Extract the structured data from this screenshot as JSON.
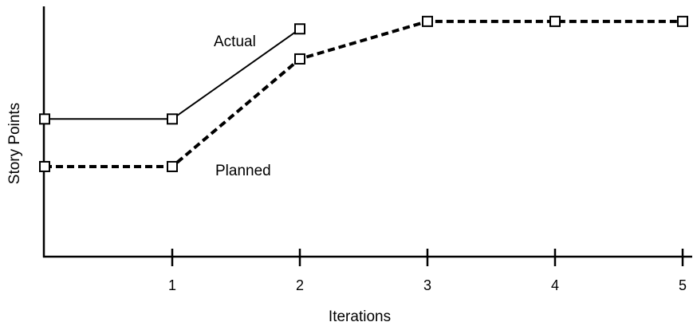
{
  "chart_data": {
    "type": "line",
    "title": "",
    "xlabel": "Iterations",
    "ylabel": "Story Points",
    "x": [
      0,
      1,
      2,
      3,
      4,
      5
    ],
    "xticks": [
      "1",
      "2",
      "3",
      "4",
      "5"
    ],
    "xlim": [
      0,
      5
    ],
    "ylim": [
      0,
      100
    ],
    "grid": false,
    "legend": "none",
    "series": [
      {
        "name": "Actual",
        "style": "solid",
        "x": [
          0,
          1,
          2
        ],
        "values": [
          55,
          55,
          91
        ]
      },
      {
        "name": "Planned",
        "style": "dashed",
        "x": [
          0,
          1,
          2,
          3,
          4,
          5
        ],
        "values": [
          36,
          36,
          79,
          94,
          94,
          94
        ]
      }
    ]
  }
}
